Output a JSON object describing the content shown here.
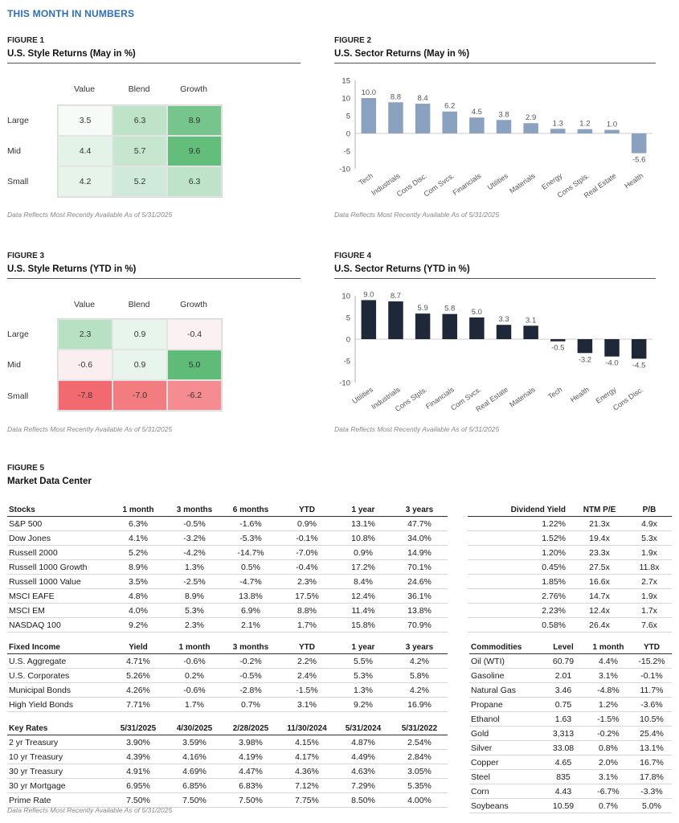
{
  "page_title": "THIS MONTH IN NUMBERS",
  "footnote": "Data Reflects Most Recently Available As of 5/31/2025",
  "fig1": {
    "label": "FIGURE 1",
    "title": "U.S. Style Returns (May in %)",
    "columns": [
      "Value",
      "Blend",
      "Growth"
    ],
    "rows": [
      "Large",
      "Mid",
      "Small"
    ],
    "values": [
      [
        "3.5",
        "6.3",
        "8.9"
      ],
      [
        "4.4",
        "5.7",
        "9.6"
      ],
      [
        "4.2",
        "5.2",
        "6.3"
      ]
    ],
    "colors": [
      [
        "#f7fbf8",
        "#bfe3c9",
        "#76c58c"
      ],
      [
        "#e3f3e7",
        "#c6e6cf",
        "#63bd7b"
      ],
      [
        "#e6f4ea",
        "#cfeada",
        "#bfe3c9"
      ]
    ]
  },
  "fig3": {
    "label": "FIGURE 3",
    "title": "U.S. Style Returns (YTD in %)",
    "columns": [
      "Value",
      "Blend",
      "Growth"
    ],
    "rows": [
      "Large",
      "Mid",
      "Small"
    ],
    "values": [
      [
        "2.3",
        "0.9",
        "-0.4"
      ],
      [
        "-0.6",
        "0.9",
        "5.0"
      ],
      [
        "-7.8",
        "-7.0",
        "-6.2"
      ]
    ],
    "colors": [
      [
        "#b8e0c3",
        "#e8f5ec",
        "#fbf1f2"
      ],
      [
        "#fbeef0",
        "#e8f5ec",
        "#5fbb78"
      ],
      [
        "#f26a70",
        "#f37c81",
        "#f58c91"
      ]
    ]
  },
  "fig2": {
    "label": "FIGURE 2",
    "title": "U.S. Sector Returns (May in %)",
    "chart_data": {
      "type": "bar",
      "categories": [
        "Tech",
        "Industrials",
        "Cons Disc.",
        "Com Svcs.",
        "Financials",
        "Utilities",
        "Materials",
        "Energy",
        "Cons Stpls.",
        "Real Estate",
        "Health"
      ],
      "values": [
        10.0,
        8.8,
        8.4,
        6.2,
        4.5,
        3.8,
        2.9,
        1.3,
        1.2,
        1.0,
        -5.6
      ],
      "value_labels": [
        "10.0",
        "8.8",
        "8.4",
        "6.2",
        "4.5",
        "3.8",
        "2.9",
        "1.3",
        "1.2",
        "1.0",
        "-5.6"
      ],
      "yticks": [
        "15",
        "10",
        "5",
        "0",
        "-5",
        "-10"
      ],
      "ylim": [
        -10,
        15
      ],
      "bar_color": "#8aa2bf"
    }
  },
  "fig4": {
    "label": "FIGURE 4",
    "title": "U.S. Sector Returns (YTD in %)",
    "chart_data": {
      "type": "bar",
      "categories": [
        "Utilities",
        "Industrials",
        "Cons Stpls.",
        "Financials",
        "Com Svcs.",
        "Real Estate",
        "Materials",
        "Tech",
        "Health",
        "Energy",
        "Cons Disc."
      ],
      "values": [
        9.0,
        8.7,
        5.9,
        5.8,
        5.0,
        3.3,
        3.1,
        -0.5,
        -3.2,
        -4.0,
        -4.5
      ],
      "value_labels": [
        "9.0",
        "8.7",
        "5.9",
        "5.8",
        "5.0",
        "3.3",
        "3.1",
        "-0.5",
        "-3.2",
        "-4.0",
        "-4.5"
      ],
      "yticks": [
        "10",
        "5",
        "0",
        "-5",
        "-10"
      ],
      "ylim": [
        -10,
        10
      ],
      "bar_color": "#1e2838"
    }
  },
  "fig5": {
    "label": "FIGURE 5",
    "title": "Market Data Center",
    "stocks": {
      "headers": [
        "Stocks",
        "1 month",
        "3 months",
        "6 months",
        "YTD",
        "1 year",
        "3 years"
      ],
      "rows": [
        [
          "S&P 500",
          "6.3%",
          "-0.5%",
          "-1.6%",
          "0.9%",
          "13.1%",
          "47.7%"
        ],
        [
          "Dow Jones",
          "4.1%",
          "-3.2%",
          "-5.3%",
          "-0.1%",
          "10.8%",
          "34.0%"
        ],
        [
          "Russell 2000",
          "5.2%",
          "-4.2%",
          "-14.7%",
          "-7.0%",
          "0.9%",
          "14.9%"
        ],
        [
          "Russell 1000 Growth",
          "8.9%",
          "1.3%",
          "0.5%",
          "-0.4%",
          "17.2%",
          "70.1%"
        ],
        [
          "Russell 1000 Value",
          "3.5%",
          "-2.5%",
          "-4.7%",
          "2.3%",
          "8.4%",
          "24.6%"
        ],
        [
          "MSCI EAFE",
          "4.8%",
          "8.9%",
          "13.8%",
          "17.5%",
          "12.4%",
          "36.1%"
        ],
        [
          "MSCI EM",
          "4.0%",
          "5.3%",
          "6.9%",
          "8.8%",
          "11.4%",
          "13.8%"
        ],
        [
          "NASDAQ 100",
          "9.2%",
          "2.3%",
          "2.1%",
          "1.7%",
          "15.8%",
          "70.9%"
        ]
      ]
    },
    "valuation": {
      "headers": [
        "Dividend Yield",
        "NTM P/E",
        "P/B"
      ],
      "rows": [
        [
          "1.22%",
          "21.3x",
          "4.9x"
        ],
        [
          "1.52%",
          "19.4x",
          "5.3x"
        ],
        [
          "1.20%",
          "23.3x",
          "1.9x"
        ],
        [
          "0.45%",
          "27.5x",
          "11.8x"
        ],
        [
          "1.85%",
          "16.6x",
          "2.7x"
        ],
        [
          "2.76%",
          "14.7x",
          "1.9x"
        ],
        [
          "2.23%",
          "12.4x",
          "1.7x"
        ],
        [
          "0.58%",
          "26.4x",
          "7.6x"
        ]
      ]
    },
    "fixed_income": {
      "headers": [
        "Fixed Income",
        "Yield",
        "1 month",
        "3 months",
        "YTD",
        "1 year",
        "3 years"
      ],
      "rows": [
        [
          "U.S. Aggregate",
          "4.71%",
          "-0.6%",
          "-0.2%",
          "2.2%",
          "5.5%",
          "4.2%"
        ],
        [
          "U.S. Corporates",
          "5.26%",
          "0.2%",
          "-0.5%",
          "2.4%",
          "5.3%",
          "5.8%"
        ],
        [
          "Municipal Bonds",
          "4.26%",
          "-0.6%",
          "-2.8%",
          "-1.5%",
          "1.3%",
          "4.2%"
        ],
        [
          "High Yield Bonds",
          "7.71%",
          "1.7%",
          "0.7%",
          "3.1%",
          "9.2%",
          "16.9%"
        ]
      ]
    },
    "key_rates": {
      "headers": [
        "Key Rates",
        "5/31/2025",
        "4/30/2025",
        "2/28/2025",
        "11/30/2024",
        "5/31/2024",
        "5/31/2022"
      ],
      "rows": [
        [
          "2 yr Treasury",
          "3.90%",
          "3.59%",
          "3.98%",
          "4.15%",
          "4.87%",
          "2.54%"
        ],
        [
          "10 yr Treasury",
          "4.39%",
          "4.16%",
          "4.19%",
          "4.17%",
          "4.49%",
          "2.84%"
        ],
        [
          "30 yr Treasury",
          "4.91%",
          "4.69%",
          "4.47%",
          "4.36%",
          "4.63%",
          "3.05%"
        ],
        [
          "30 yr Mortgage",
          "6.95%",
          "6.85%",
          "6.83%",
          "7.12%",
          "7.29%",
          "5.35%"
        ],
        [
          "Prime Rate",
          "7.50%",
          "7.50%",
          "7.50%",
          "7.75%",
          "8.50%",
          "4.00%"
        ]
      ]
    },
    "commodities": {
      "headers": [
        "Commodities",
        "Level",
        "1 month",
        "YTD"
      ],
      "rows": [
        [
          "Oil (WTI)",
          "60.79",
          "4.4%",
          "-15.2%"
        ],
        [
          "Gasoline",
          "2.01",
          "3.1%",
          "-0.1%"
        ],
        [
          "Natural Gas",
          "3.46",
          "-4.8%",
          "11.7%"
        ],
        [
          "Propane",
          "0.75",
          "1.2%",
          "-3.6%"
        ],
        [
          "Ethanol",
          "1.63",
          "-1.5%",
          "10.5%"
        ],
        [
          "Gold",
          "3,313",
          "-0.2%",
          "25.4%"
        ],
        [
          "Silver",
          "33.08",
          "0.8%",
          "13.1%"
        ],
        [
          "Copper",
          "4.65",
          "2.0%",
          "16.7%"
        ],
        [
          "Steel",
          "835",
          "3.1%",
          "17.8%"
        ],
        [
          "Corn",
          "4.43",
          "-6.7%",
          "-3.3%"
        ],
        [
          "Soybeans",
          "10.59",
          "0.7%",
          "5.0%"
        ]
      ]
    }
  }
}
